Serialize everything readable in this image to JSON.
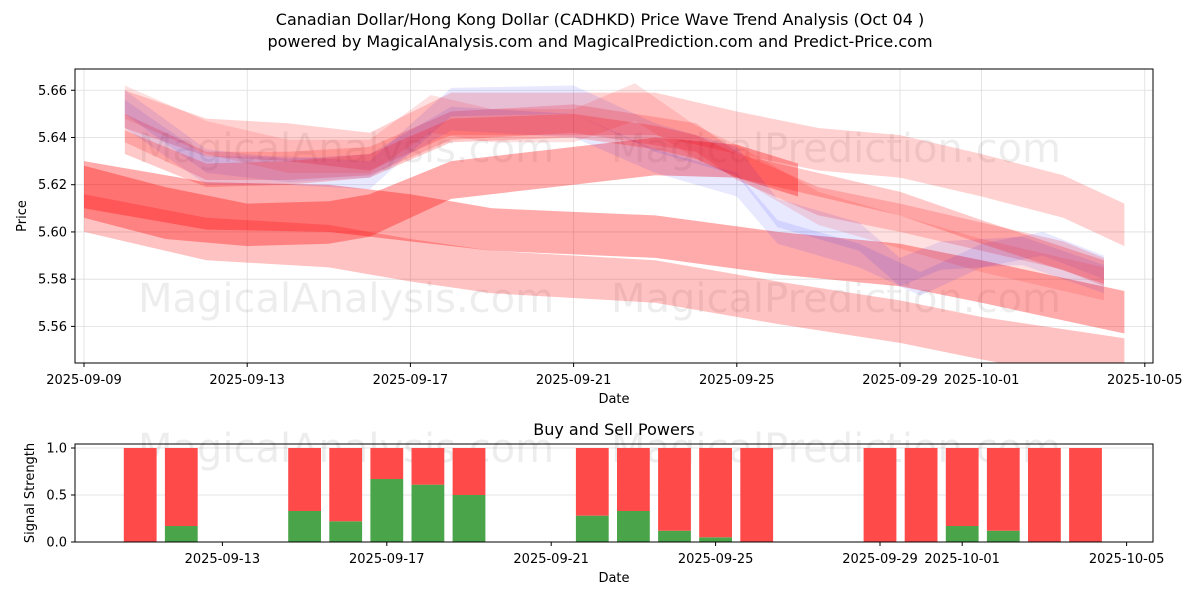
{
  "title_line1": "Canadian Dollar/Hong Kong Dollar (CADHKD) Price Wave Trend Analysis (Oct 04 )",
  "title_line2": "powered by MagicalAnalysis.com and MagicalPrediction.com and Predict-Price.com",
  "watermarks": [
    "MagicalAnalysis.com",
    "MagicalPrediction.com"
  ],
  "colors": {
    "red_band": "#ff0000",
    "blue_band": "#0000ff",
    "buy": "#4aa54a",
    "sell": "#ff4a4a",
    "grid": "#dddddd"
  },
  "chart_data": [
    {
      "type": "area",
      "title": "",
      "xlabel": "Date",
      "ylabel": "Price",
      "ylim": [
        5.5445,
        5.669
      ],
      "xlim": [
        "2025-09-08.8",
        "2025-10-05.2"
      ],
      "grid": true,
      "yticks": [
        "5.56",
        "5.58",
        "5.60",
        "5.62",
        "5.64",
        "5.66"
      ],
      "ytick_values": [
        5.56,
        5.58,
        5.6,
        5.62,
        5.64,
        5.66
      ],
      "xticks": [
        "2025-09-09",
        "2025-09-13",
        "2025-09-17",
        "2025-09-21",
        "2025-09-25",
        "2025-09-29",
        "2025-10-01",
        "2025-10-05"
      ],
      "xtick_days": [
        0,
        4,
        8,
        12,
        16,
        20,
        22,
        26
      ],
      "series": [
        {
          "name": "band-1",
          "color": "red",
          "opacity": 0.55,
          "days": [
            0,
            3,
            6,
            8,
            10,
            14,
            17,
            20,
            22,
            25.5
          ],
          "center": [
            5.62,
            5.611,
            5.61,
            5.606,
            5.601,
            5.598,
            5.591,
            5.586,
            5.579,
            5.566
          ],
          "half": [
            0.01,
            0.01,
            0.01,
            0.01,
            0.009,
            0.009,
            0.009,
            0.009,
            0.009,
            0.009
          ]
        },
        {
          "name": "band-2",
          "color": "red",
          "opacity": 0.4,
          "days": [
            0,
            3,
            6,
            8,
            10,
            14,
            17,
            20,
            22,
            25.5
          ],
          "center": [
            5.608,
            5.597,
            5.594,
            5.588,
            5.583,
            5.579,
            5.57,
            5.562,
            5.555,
            5.545
          ],
          "half": [
            0.008,
            0.009,
            0.009,
            0.009,
            0.009,
            0.009,
            0.009,
            0.009,
            0.009,
            0.01
          ]
        },
        {
          "name": "band-3",
          "color": "red",
          "opacity": 0.55,
          "days": [
            0,
            2,
            4,
            6,
            7,
            9,
            12,
            14,
            16,
            17.5
          ],
          "center": [
            5.617,
            5.608,
            5.603,
            5.604,
            5.607,
            5.622,
            5.628,
            5.632,
            5.63,
            5.622
          ],
          "half": [
            0.011,
            0.011,
            0.009,
            0.009,
            0.009,
            0.008,
            0.008,
            0.008,
            0.007,
            0.007
          ]
        },
        {
          "name": "band-4",
          "color": "red",
          "opacity": 0.3,
          "days": [
            1,
            3,
            5,
            7,
            9,
            12,
            14,
            16,
            18,
            20,
            22,
            24,
            25.5
          ],
          "center": [
            5.652,
            5.64,
            5.638,
            5.634,
            5.65,
            5.65,
            5.65,
            5.642,
            5.635,
            5.632,
            5.624,
            5.615,
            5.603
          ],
          "half": [
            0.008,
            0.008,
            0.008,
            0.008,
            0.009,
            0.009,
            0.009,
            0.009,
            0.009,
            0.009,
            0.009,
            0.009,
            0.009
          ]
        },
        {
          "name": "band-5",
          "color": "red",
          "opacity": 0.3,
          "days": [
            1,
            3,
            5,
            7,
            9,
            12,
            15,
            16,
            18,
            20,
            22,
            24,
            25
          ],
          "center": [
            5.644,
            5.628,
            5.628,
            5.63,
            5.645,
            5.648,
            5.64,
            5.628,
            5.613,
            5.606,
            5.598,
            5.59,
            5.583
          ],
          "half": [
            0.006,
            0.006,
            0.006,
            0.006,
            0.006,
            0.006,
            0.006,
            0.006,
            0.006,
            0.006,
            0.006,
            0.006,
            0.006
          ]
        },
        {
          "name": "band-6",
          "color": "blue",
          "opacity": 0.15,
          "days": [
            1,
            3,
            5,
            7,
            9,
            12,
            14,
            16,
            17,
            19,
            20,
            21,
            23,
            25
          ],
          "center": [
            5.65,
            5.626,
            5.626,
            5.624,
            5.655,
            5.656,
            5.64,
            5.63,
            5.608,
            5.598,
            5.583,
            5.59,
            5.592,
            5.58
          ],
          "half": [
            0.006,
            0.006,
            0.006,
            0.006,
            0.006,
            0.006,
            0.006,
            0.006,
            0.006,
            0.006,
            0.006,
            0.006,
            0.006,
            0.006
          ]
        },
        {
          "name": "band-7",
          "color": "blue",
          "opacity": 0.15,
          "days": [
            1,
            3,
            5,
            7,
            9,
            12,
            14,
            16,
            17,
            19,
            20.5,
            22,
            23.5,
            25
          ],
          "center": [
            5.655,
            5.63,
            5.626,
            5.628,
            5.648,
            5.645,
            5.63,
            5.62,
            5.6,
            5.59,
            5.578,
            5.59,
            5.595,
            5.585
          ],
          "half": [
            0.005,
            0.005,
            0.005,
            0.005,
            0.005,
            0.005,
            0.005,
            0.005,
            0.005,
            0.005,
            0.005,
            0.005,
            0.005,
            0.005
          ]
        },
        {
          "name": "band-8",
          "color": "red",
          "opacity": 0.2,
          "days": [
            1,
            3,
            5,
            7,
            8.5,
            10,
            12,
            13.5,
            15,
            16,
            18,
            20,
            22,
            25
          ],
          "center": [
            5.655,
            5.64,
            5.632,
            5.632,
            5.65,
            5.645,
            5.645,
            5.655,
            5.638,
            5.63,
            5.61,
            5.6,
            5.59,
            5.578
          ],
          "half": [
            0.007,
            0.007,
            0.007,
            0.007,
            0.008,
            0.007,
            0.007,
            0.008,
            0.007,
            0.007,
            0.007,
            0.007,
            0.007,
            0.007
          ]
        },
        {
          "name": "band-9",
          "color": "red",
          "opacity": 0.35,
          "days": [
            1,
            3,
            5,
            7,
            9,
            12,
            14,
            15,
            16,
            18,
            20,
            22,
            25
          ],
          "center": [
            5.638,
            5.624,
            5.625,
            5.628,
            5.643,
            5.645,
            5.64,
            5.636,
            5.628,
            5.62,
            5.612,
            5.6,
            5.583
          ],
          "half": [
            0.005,
            0.005,
            0.005,
            0.005,
            0.005,
            0.005,
            0.005,
            0.005,
            0.005,
            0.005,
            0.005,
            0.005,
            0.005
          ]
        }
      ]
    },
    {
      "type": "bar",
      "title": "Buy and Sell Powers",
      "xlabel": "Date",
      "ylabel": "Signal Strength",
      "ylim": [
        0,
        1.05
      ],
      "grid": true,
      "yticks": [
        "0.0",
        "0.5",
        "1.0"
      ],
      "ytick_values": [
        0,
        0.5,
        1.0
      ],
      "xticks": [
        "2025-09-13",
        "2025-09-17",
        "2025-09-21",
        "2025-09-25",
        "2025-09-29",
        "2025-10-01",
        "2025-10-05"
      ],
      "xtick_days": [
        4,
        8,
        12,
        16,
        20,
        22,
        26
      ],
      "legend": "none",
      "categories": [
        "2025-09-11",
        "2025-09-12",
        "2025-09-15",
        "2025-09-16",
        "2025-09-17",
        "2025-09-18",
        "2025-09-19",
        "2025-09-22",
        "2025-09-23",
        "2025-09-24",
        "2025-09-25",
        "2025-09-26",
        "2025-09-29",
        "2025-09-30",
        "2025-10-01",
        "2025-10-02",
        "2025-10-03",
        "2025-10-04"
      ],
      "category_days": [
        2,
        3,
        6,
        7,
        8,
        9,
        10,
        13,
        14,
        15,
        16,
        17,
        20,
        21,
        22,
        23,
        24,
        25
      ],
      "series": [
        {
          "name": "Buy",
          "color": "#4aa54a",
          "values": [
            0.0,
            0.17,
            0.33,
            0.22,
            0.67,
            0.61,
            0.5,
            0.28,
            0.33,
            0.12,
            0.05,
            0.0,
            0.0,
            0.0,
            0.17,
            0.12,
            0.0,
            0.0
          ]
        },
        {
          "name": "Sell",
          "color": "#ff4a4a",
          "values": [
            1.0,
            0.83,
            0.67,
            0.78,
            0.33,
            0.39,
            0.5,
            0.72,
            0.67,
            0.88,
            0.95,
            1.0,
            1.0,
            1.0,
            0.83,
            0.88,
            1.0,
            1.0
          ]
        }
      ]
    }
  ]
}
